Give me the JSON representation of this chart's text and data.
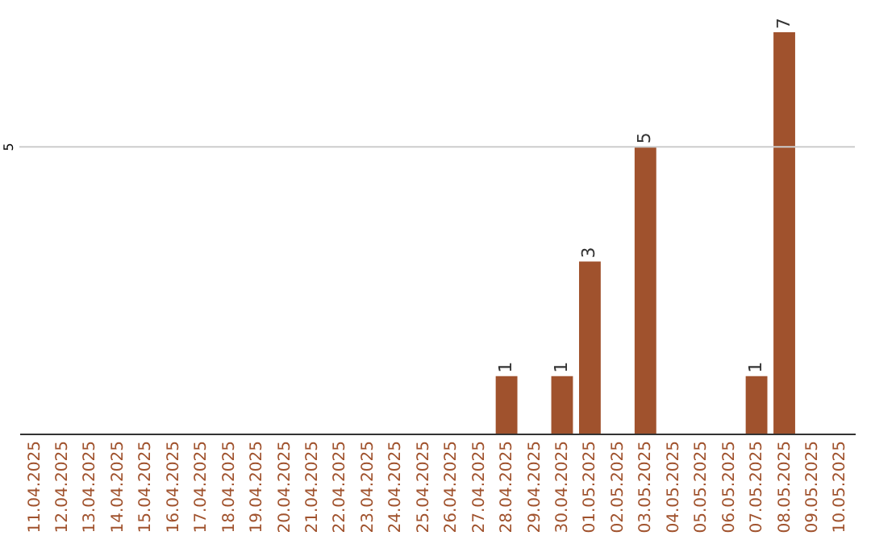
{
  "chart_data": {
    "type": "bar",
    "categories": [
      "11.04.2025",
      "12.04.2025",
      "13.04.2025",
      "14.04.2025",
      "15.04.2025",
      "16.04.2025",
      "17.04.2025",
      "18.04.2025",
      "19.04.2025",
      "20.04.2025",
      "21.04.2025",
      "22.04.2025",
      "23.04.2025",
      "24.04.2025",
      "25.04.2025",
      "26.04.2025",
      "27.04.2025",
      "28.04.2025",
      "29.04.2025",
      "30.04.2025",
      "01.05.2025",
      "02.05.2025",
      "03.05.2025",
      "04.05.2025",
      "05.05.2025",
      "06.05.2025",
      "07.05.2025",
      "08.05.2025",
      "09.05.2025",
      "10.05.2025"
    ],
    "values": [
      null,
      null,
      null,
      null,
      null,
      null,
      null,
      null,
      null,
      null,
      null,
      null,
      null,
      null,
      null,
      null,
      null,
      1,
      null,
      1,
      3,
      null,
      5,
      null,
      null,
      null,
      1,
      7,
      null,
      null
    ],
    "color": "#a0522d",
    "ref_lines": [
      {
        "axis": "y",
        "value": 5,
        "label": "5",
        "color": "#cccccc"
      }
    ],
    "data_labels": true
  }
}
